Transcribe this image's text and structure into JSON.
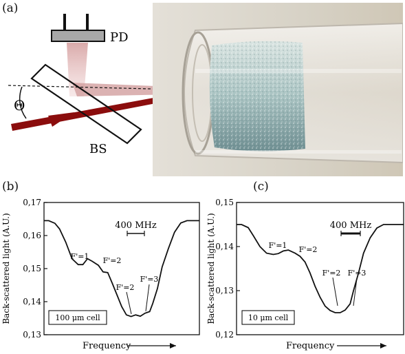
{
  "panels": {
    "a": {
      "label": "(a)",
      "pd_label": "PD",
      "bs_label": "BS",
      "angle_label": "Θ"
    },
    "b": {
      "label": "(b)"
    },
    "c": {
      "label": "(c)"
    }
  },
  "chart_data": [
    {
      "type": "line",
      "panel": "(b)",
      "ylabel": "Back-scattered light (A.U.)",
      "xlabel": "Frequency",
      "ylim": [
        0.13,
        0.17
      ],
      "yticks": [
        "0,13",
        "0,14",
        "0,15",
        "0,16",
        "0,17"
      ],
      "ytick_values": [
        0.13,
        0.14,
        0.15,
        0.16,
        0.17
      ],
      "scale_bar_label": "400 MHz",
      "scale_bar_mhz": 400,
      "annotations": [
        "F'=1",
        "F'=2",
        "F'=2",
        "F'=3"
      ],
      "legend_box": "100 μm cell",
      "series": [
        {
          "x": [
            0,
            3,
            7,
            10,
            14,
            18,
            22,
            25,
            28,
            31,
            35,
            38,
            41,
            44,
            47,
            50,
            53,
            56,
            59,
            62,
            65,
            68,
            70,
            73,
            76,
            80,
            84,
            88,
            92,
            96,
            100
          ],
          "values": [
            0.1645,
            0.1645,
            0.1637,
            0.162,
            0.158,
            0.153,
            0.1512,
            0.1512,
            0.153,
            0.1522,
            0.151,
            0.149,
            0.1488,
            0.1455,
            0.142,
            0.1385,
            0.136,
            0.1355,
            0.136,
            0.1356,
            0.1365,
            0.137,
            0.1395,
            0.144,
            0.1505,
            0.156,
            0.161,
            0.1638,
            0.1645,
            0.1645,
            0.1645
          ]
        }
      ]
    },
    {
      "type": "line",
      "panel": "(c)",
      "ylabel": "Back-scattered light (A.U.)",
      "xlabel": "Frequency",
      "ylim": [
        0.12,
        0.15
      ],
      "yticks": [
        "0,12",
        "0,13",
        "0,14",
        "0,15"
      ],
      "ytick_values": [
        0.12,
        0.13,
        0.14,
        0.15
      ],
      "scale_bar_label": "400 MHz",
      "scale_bar_mhz": 400,
      "annotations": [
        "F'=1",
        "F'=2",
        "F'=2",
        "F'=3"
      ],
      "legend_box": "10 μm cell",
      "series": [
        {
          "x": [
            0,
            3,
            7,
            10,
            14,
            18,
            22,
            25,
            28,
            31,
            35,
            38,
            41,
            44,
            47,
            50,
            53,
            56,
            59,
            62,
            65,
            68,
            70,
            73,
            76,
            80,
            84,
            88,
            92,
            96,
            100
          ],
          "values": [
            0.145,
            0.145,
            0.1443,
            0.1425,
            0.14,
            0.1385,
            0.1382,
            0.1384,
            0.139,
            0.1392,
            0.1385,
            0.1378,
            0.1365,
            0.134,
            0.131,
            0.1285,
            0.1265,
            0.1255,
            0.125,
            0.125,
            0.1256,
            0.127,
            0.13,
            0.134,
            0.1385,
            0.142,
            0.1442,
            0.145,
            0.145,
            0.145,
            0.145
          ]
        }
      ]
    }
  ]
}
